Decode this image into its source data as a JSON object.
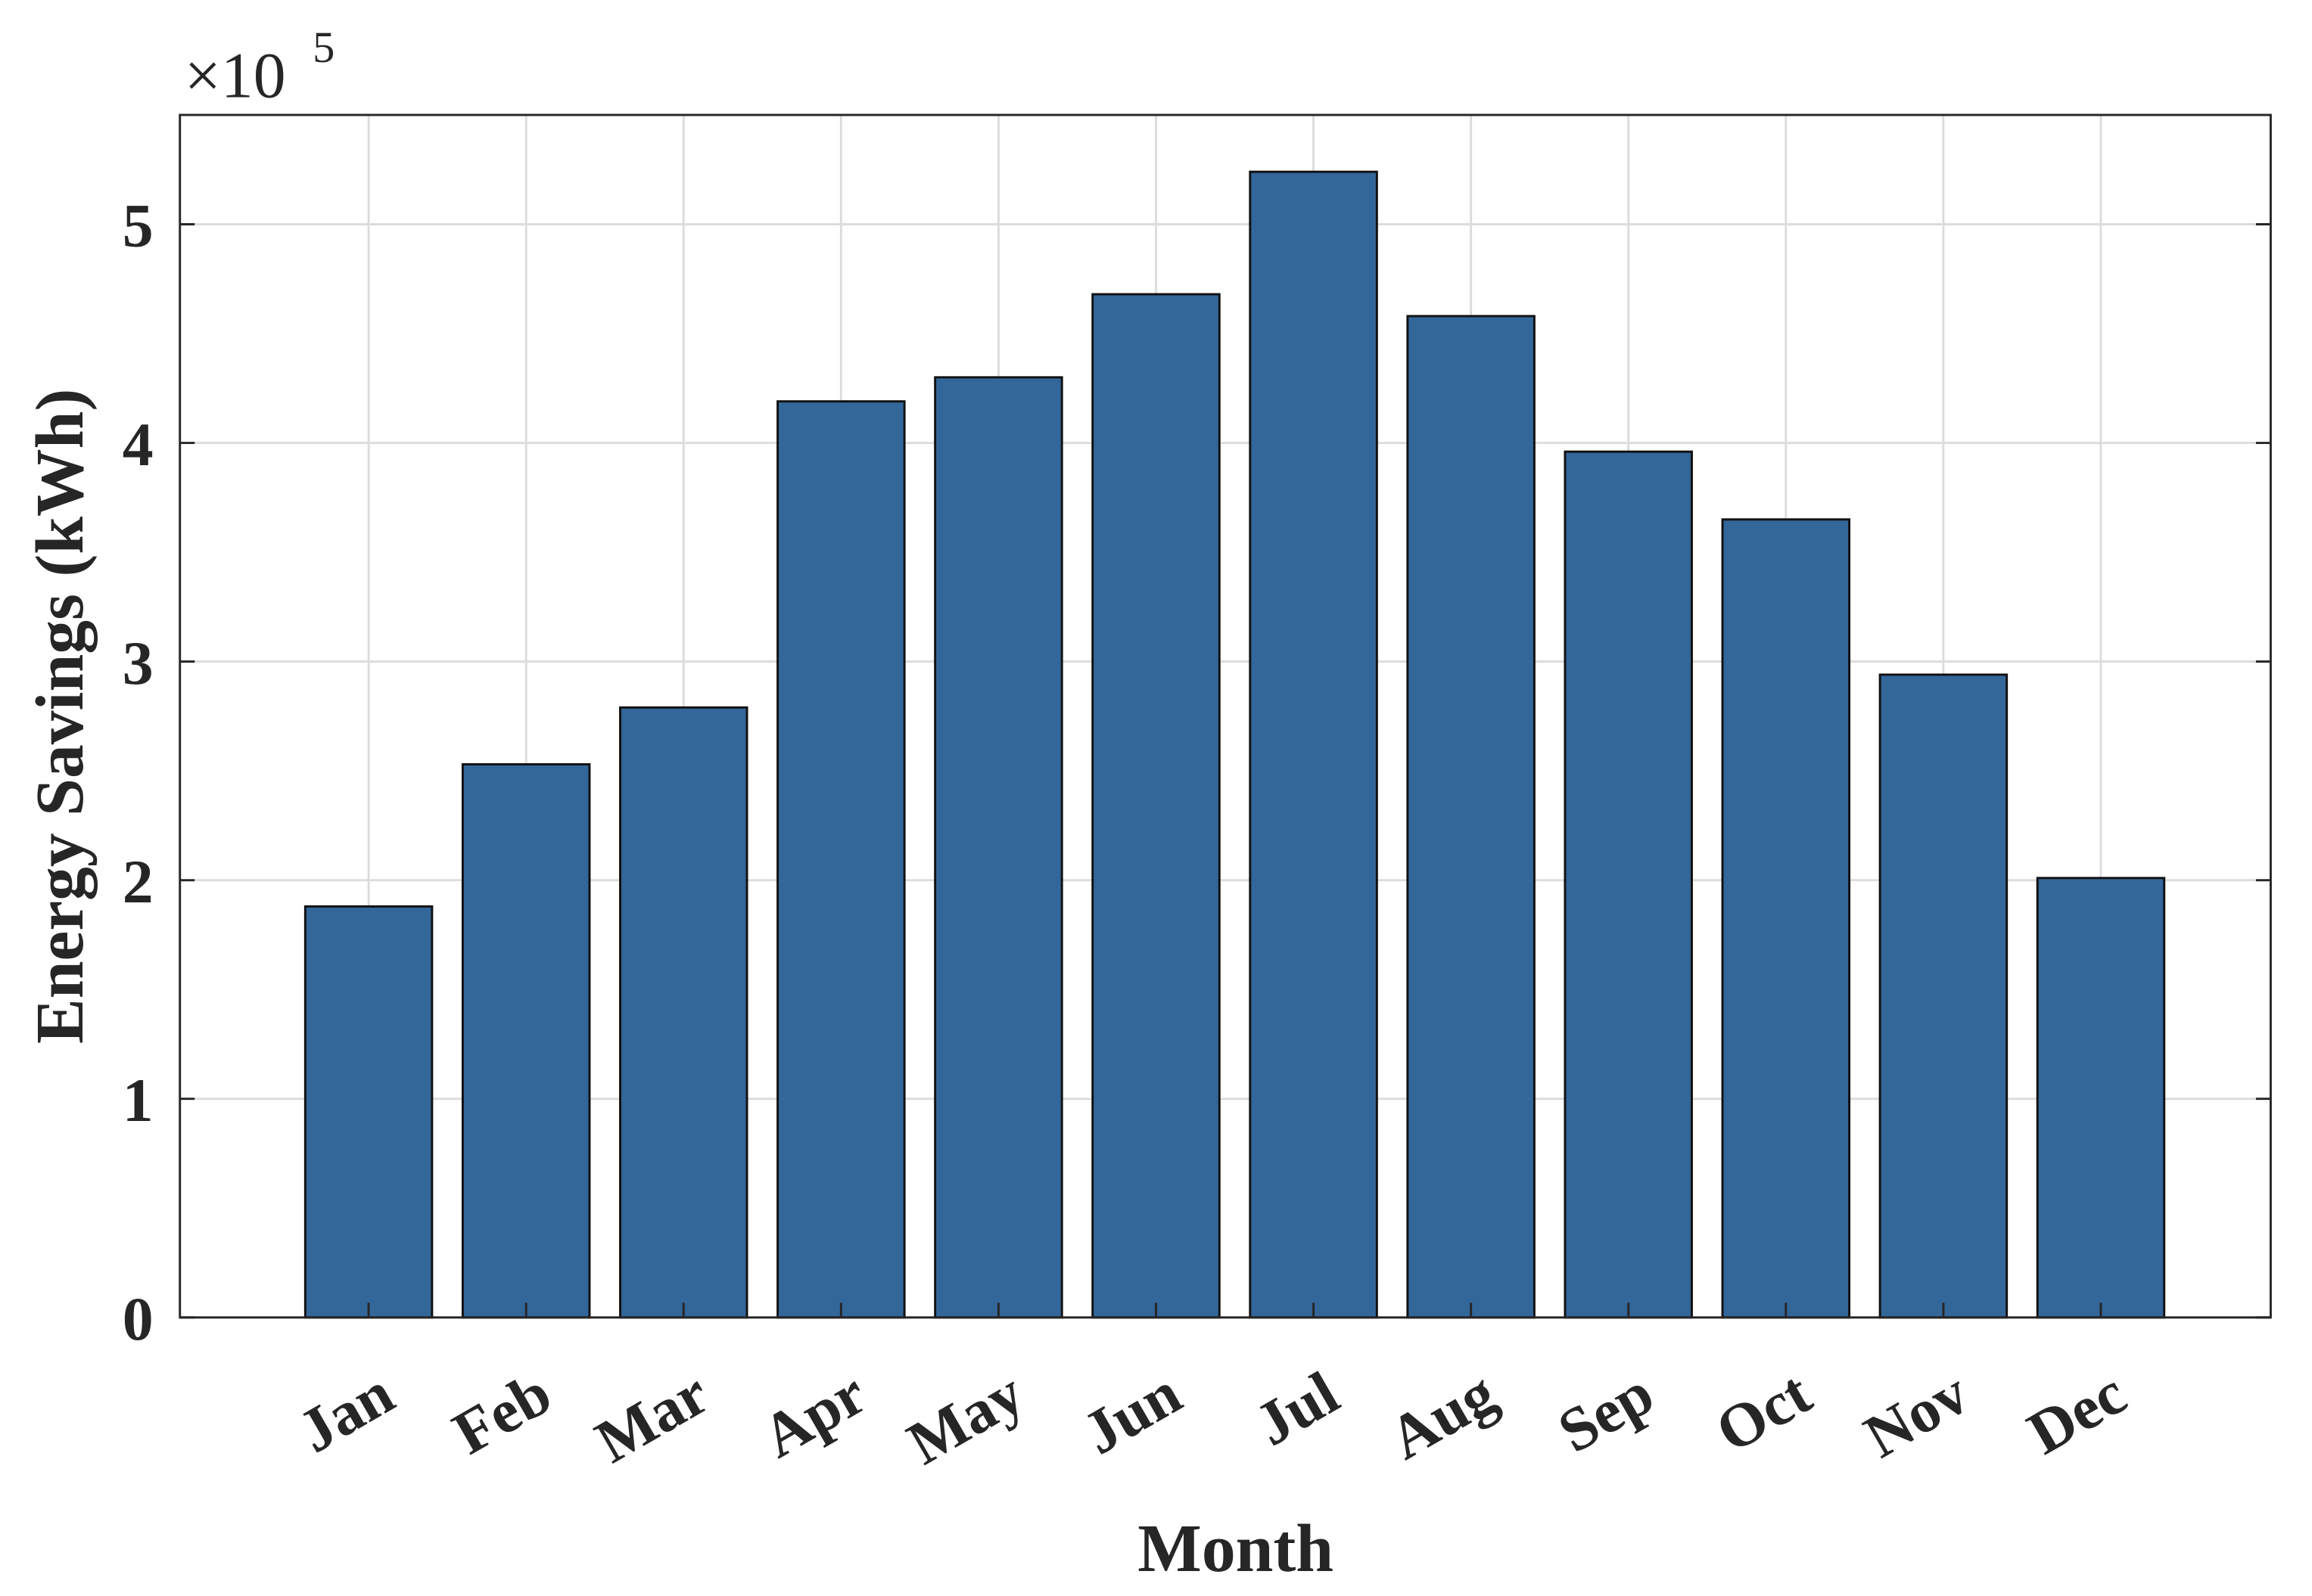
{
  "chart_data": {
    "type": "bar",
    "y_label": "Energy Savings (kWh)",
    "x_label": "Month",
    "y_multiplier": {
      "base": "×10",
      "exponent": "5"
    },
    "categories": [
      "Jan",
      "Feb",
      "Mar",
      "Apr",
      "May",
      "Jun",
      "Jul",
      "Aug",
      "Sep",
      "Oct",
      "Nov",
      "Dec"
    ],
    "values": [
      1.88,
      2.53,
      2.79,
      4.19,
      4.3,
      4.68,
      5.24,
      4.58,
      3.96,
      3.65,
      2.94,
      2.01
    ],
    "color": "#336699",
    "ylim": [
      0,
      5.5
    ],
    "yticks": [
      0,
      1,
      2,
      3,
      4,
      5
    ],
    "grid": true
  }
}
